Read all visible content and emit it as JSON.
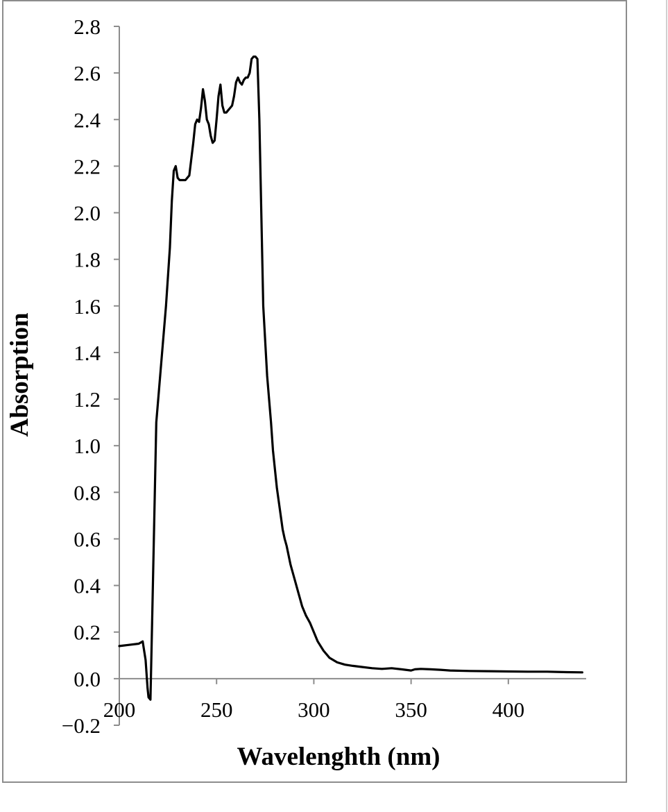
{
  "chart_data": {
    "type": "line",
    "title": "",
    "xlabel": "Wavelenghth (nm)",
    "ylabel": "Absorption",
    "xlim": [
      200,
      440
    ],
    "ylim": [
      -0.2,
      2.8
    ],
    "grid": false,
    "legend": "none",
    "x_ticks": [
      "200",
      "250",
      "300",
      "350",
      "400"
    ],
    "y_ticks": [
      "−0.2",
      "0.0",
      "0.2",
      "0.4",
      "0.6",
      "0.8",
      "1.0",
      "1.2",
      "1.4",
      "1.6",
      "1.8",
      "2.0",
      "2.2",
      "2.4",
      "2.6",
      "2.8"
    ],
    "line_color": "#000000",
    "axis_color": "#8c8c8c",
    "series": [
      {
        "x": [
          200,
          205,
          210,
          212,
          213.5,
          214.5,
          215,
          216,
          217,
          218,
          219,
          220,
          221,
          222,
          224,
          226,
          227,
          228,
          229,
          230,
          231,
          232,
          234,
          236,
          238,
          239,
          240,
          241,
          242,
          243,
          244,
          245,
          246,
          247,
          248,
          249,
          250,
          251,
          252,
          253,
          254,
          255,
          256,
          257,
          258,
          259,
          260,
          261,
          262,
          263,
          264,
          265,
          266,
          267,
          268,
          269,
          270,
          271,
          272,
          273,
          274,
          276,
          278,
          279,
          280,
          281,
          282,
          283,
          284,
          285,
          286,
          287,
          288,
          289,
          290,
          291,
          292,
          293,
          294,
          295,
          296,
          298,
          300,
          302,
          305,
          308,
          312,
          316,
          320,
          325,
          330,
          335,
          340,
          345,
          350,
          352,
          355,
          360,
          365,
          370,
          380,
          390,
          400,
          410,
          420,
          430,
          438
        ],
        "y": [
          0.14,
          0.145,
          0.15,
          0.16,
          0.08,
          -0.04,
          -0.08,
          -0.09,
          0.3,
          0.7,
          1.1,
          1.2,
          1.3,
          1.4,
          1.6,
          1.85,
          2.05,
          2.18,
          2.2,
          2.15,
          2.14,
          2.14,
          2.14,
          2.16,
          2.3,
          2.38,
          2.4,
          2.39,
          2.45,
          2.53,
          2.48,
          2.4,
          2.38,
          2.33,
          2.3,
          2.31,
          2.4,
          2.5,
          2.55,
          2.46,
          2.43,
          2.43,
          2.44,
          2.45,
          2.46,
          2.5,
          2.56,
          2.58,
          2.56,
          2.55,
          2.57,
          2.58,
          2.58,
          2.6,
          2.66,
          2.67,
          2.67,
          2.66,
          2.4,
          2.0,
          1.6,
          1.3,
          1.1,
          0.98,
          0.9,
          0.82,
          0.76,
          0.7,
          0.64,
          0.6,
          0.57,
          0.53,
          0.49,
          0.46,
          0.43,
          0.4,
          0.37,
          0.34,
          0.31,
          0.29,
          0.27,
          0.24,
          0.2,
          0.16,
          0.12,
          0.09,
          0.07,
          0.06,
          0.055,
          0.05,
          0.045,
          0.042,
          0.045,
          0.04,
          0.035,
          0.04,
          0.042,
          0.04,
          0.038,
          0.035,
          0.033,
          0.032,
          0.031,
          0.03,
          0.03,
          0.028,
          0.027
        ]
      }
    ]
  }
}
